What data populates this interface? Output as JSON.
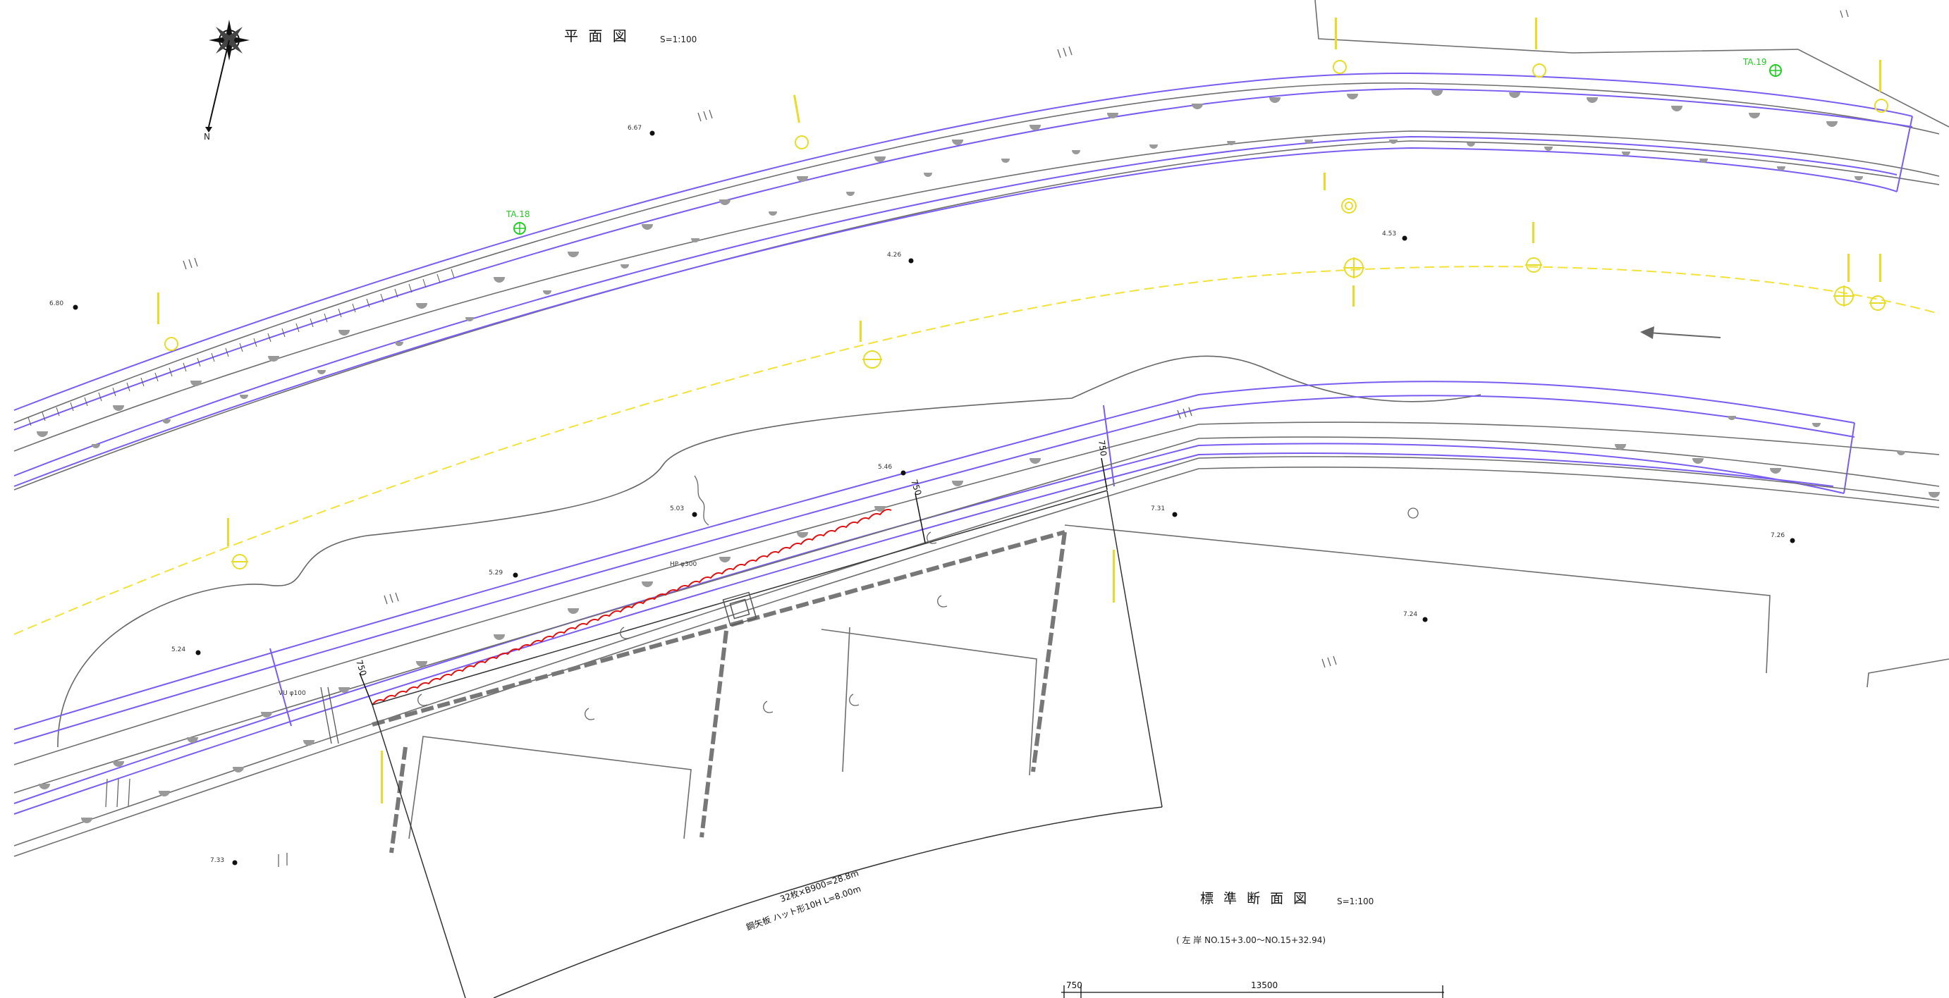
{
  "plan": {
    "title": "平 面 図",
    "scale": "S=1:100",
    "north": "N"
  },
  "section": {
    "title": "標 準 断 面 図",
    "scale": "S=1:100",
    "range": "( 左 岸  NO.15+3.00～NO.15+32.94)"
  },
  "sheet_pile": {
    "line1": "32枚×B900=28.8m",
    "line2": "鋼矢板 ハット形10H  L=8.00m"
  },
  "benchmarks": [
    "TA.18",
    "TA.19"
  ],
  "pipes": [
    "HP φ300",
    "VU φ100"
  ],
  "dimensions": {
    "d750_a": "750",
    "d750_b": "750",
    "d750_c": "750",
    "bottom_750": "750",
    "bottom_13500": "13500"
  },
  "spot_levels": [
    "6.80",
    "6.67",
    "4.26",
    "4.53",
    "5.46",
    "5.03",
    "5.29",
    "5.24",
    "7.31",
    "7.26",
    "7.24",
    "7.33"
  ],
  "colors": {
    "boundary": "#7a5cf0",
    "river_line": "#f2e23a",
    "sheet_pile_wave": "#e01010",
    "benchmark": "#22cc22",
    "linework": "#6e6e6e"
  }
}
